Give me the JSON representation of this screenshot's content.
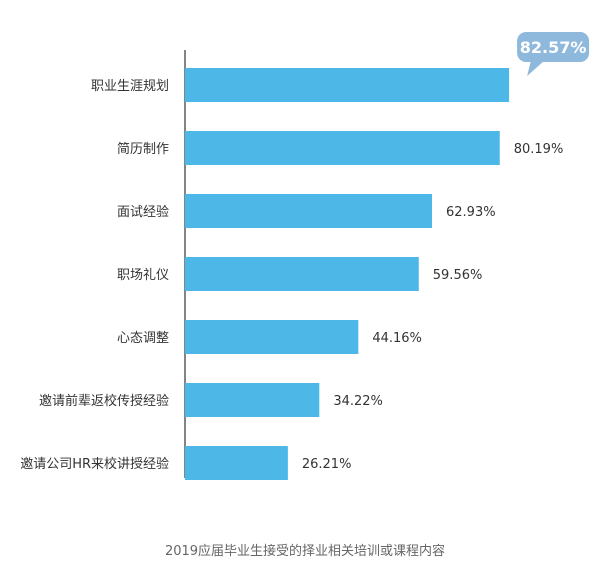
{
  "chart_data": {
    "type": "bar",
    "orientation": "horizontal",
    "categories": [
      "职业生涯规划",
      "简历制作",
      "面试经验",
      "职场礼仪",
      "心态调整",
      "邀请前辈返校传授经验",
      "邀请公司HR来校讲授经验"
    ],
    "values": [
      82.57,
      80.19,
      62.93,
      59.56,
      44.16,
      34.22,
      26.21
    ],
    "value_labels": [
      "82.57%",
      "80.19%",
      "62.93%",
      "59.56%",
      "44.16%",
      "34.22%",
      "26.21%"
    ],
    "xlim": [
      0,
      100
    ],
    "grid": false,
    "highlight_index": 0,
    "bar_color": "#4db8e8",
    "callout_color": "#8fb9dc",
    "caption": "2019应届毕业生接受的择业相关培训或课程内容"
  }
}
